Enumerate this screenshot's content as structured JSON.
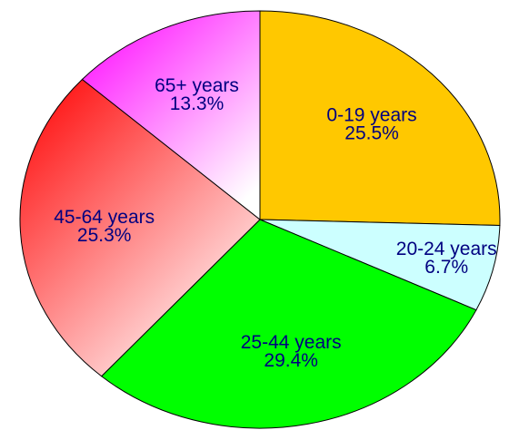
{
  "chart_data": {
    "type": "pie",
    "categories": [
      "0-19 years",
      "20-24 years",
      "25-44 years",
      "45-64 years",
      "65+ years"
    ],
    "values": [
      25.5,
      6.7,
      29.4,
      25.3,
      13.3
    ],
    "value_labels": [
      "25.5%",
      "6.7%",
      "29.4%",
      "25.3%",
      "13.3%"
    ],
    "colors": [
      "#ffc800",
      "#ccffff",
      "#00ff00",
      "#ff0000",
      "#ff00ff"
    ],
    "gradient": [
      false,
      false,
      false,
      true,
      true
    ]
  }
}
